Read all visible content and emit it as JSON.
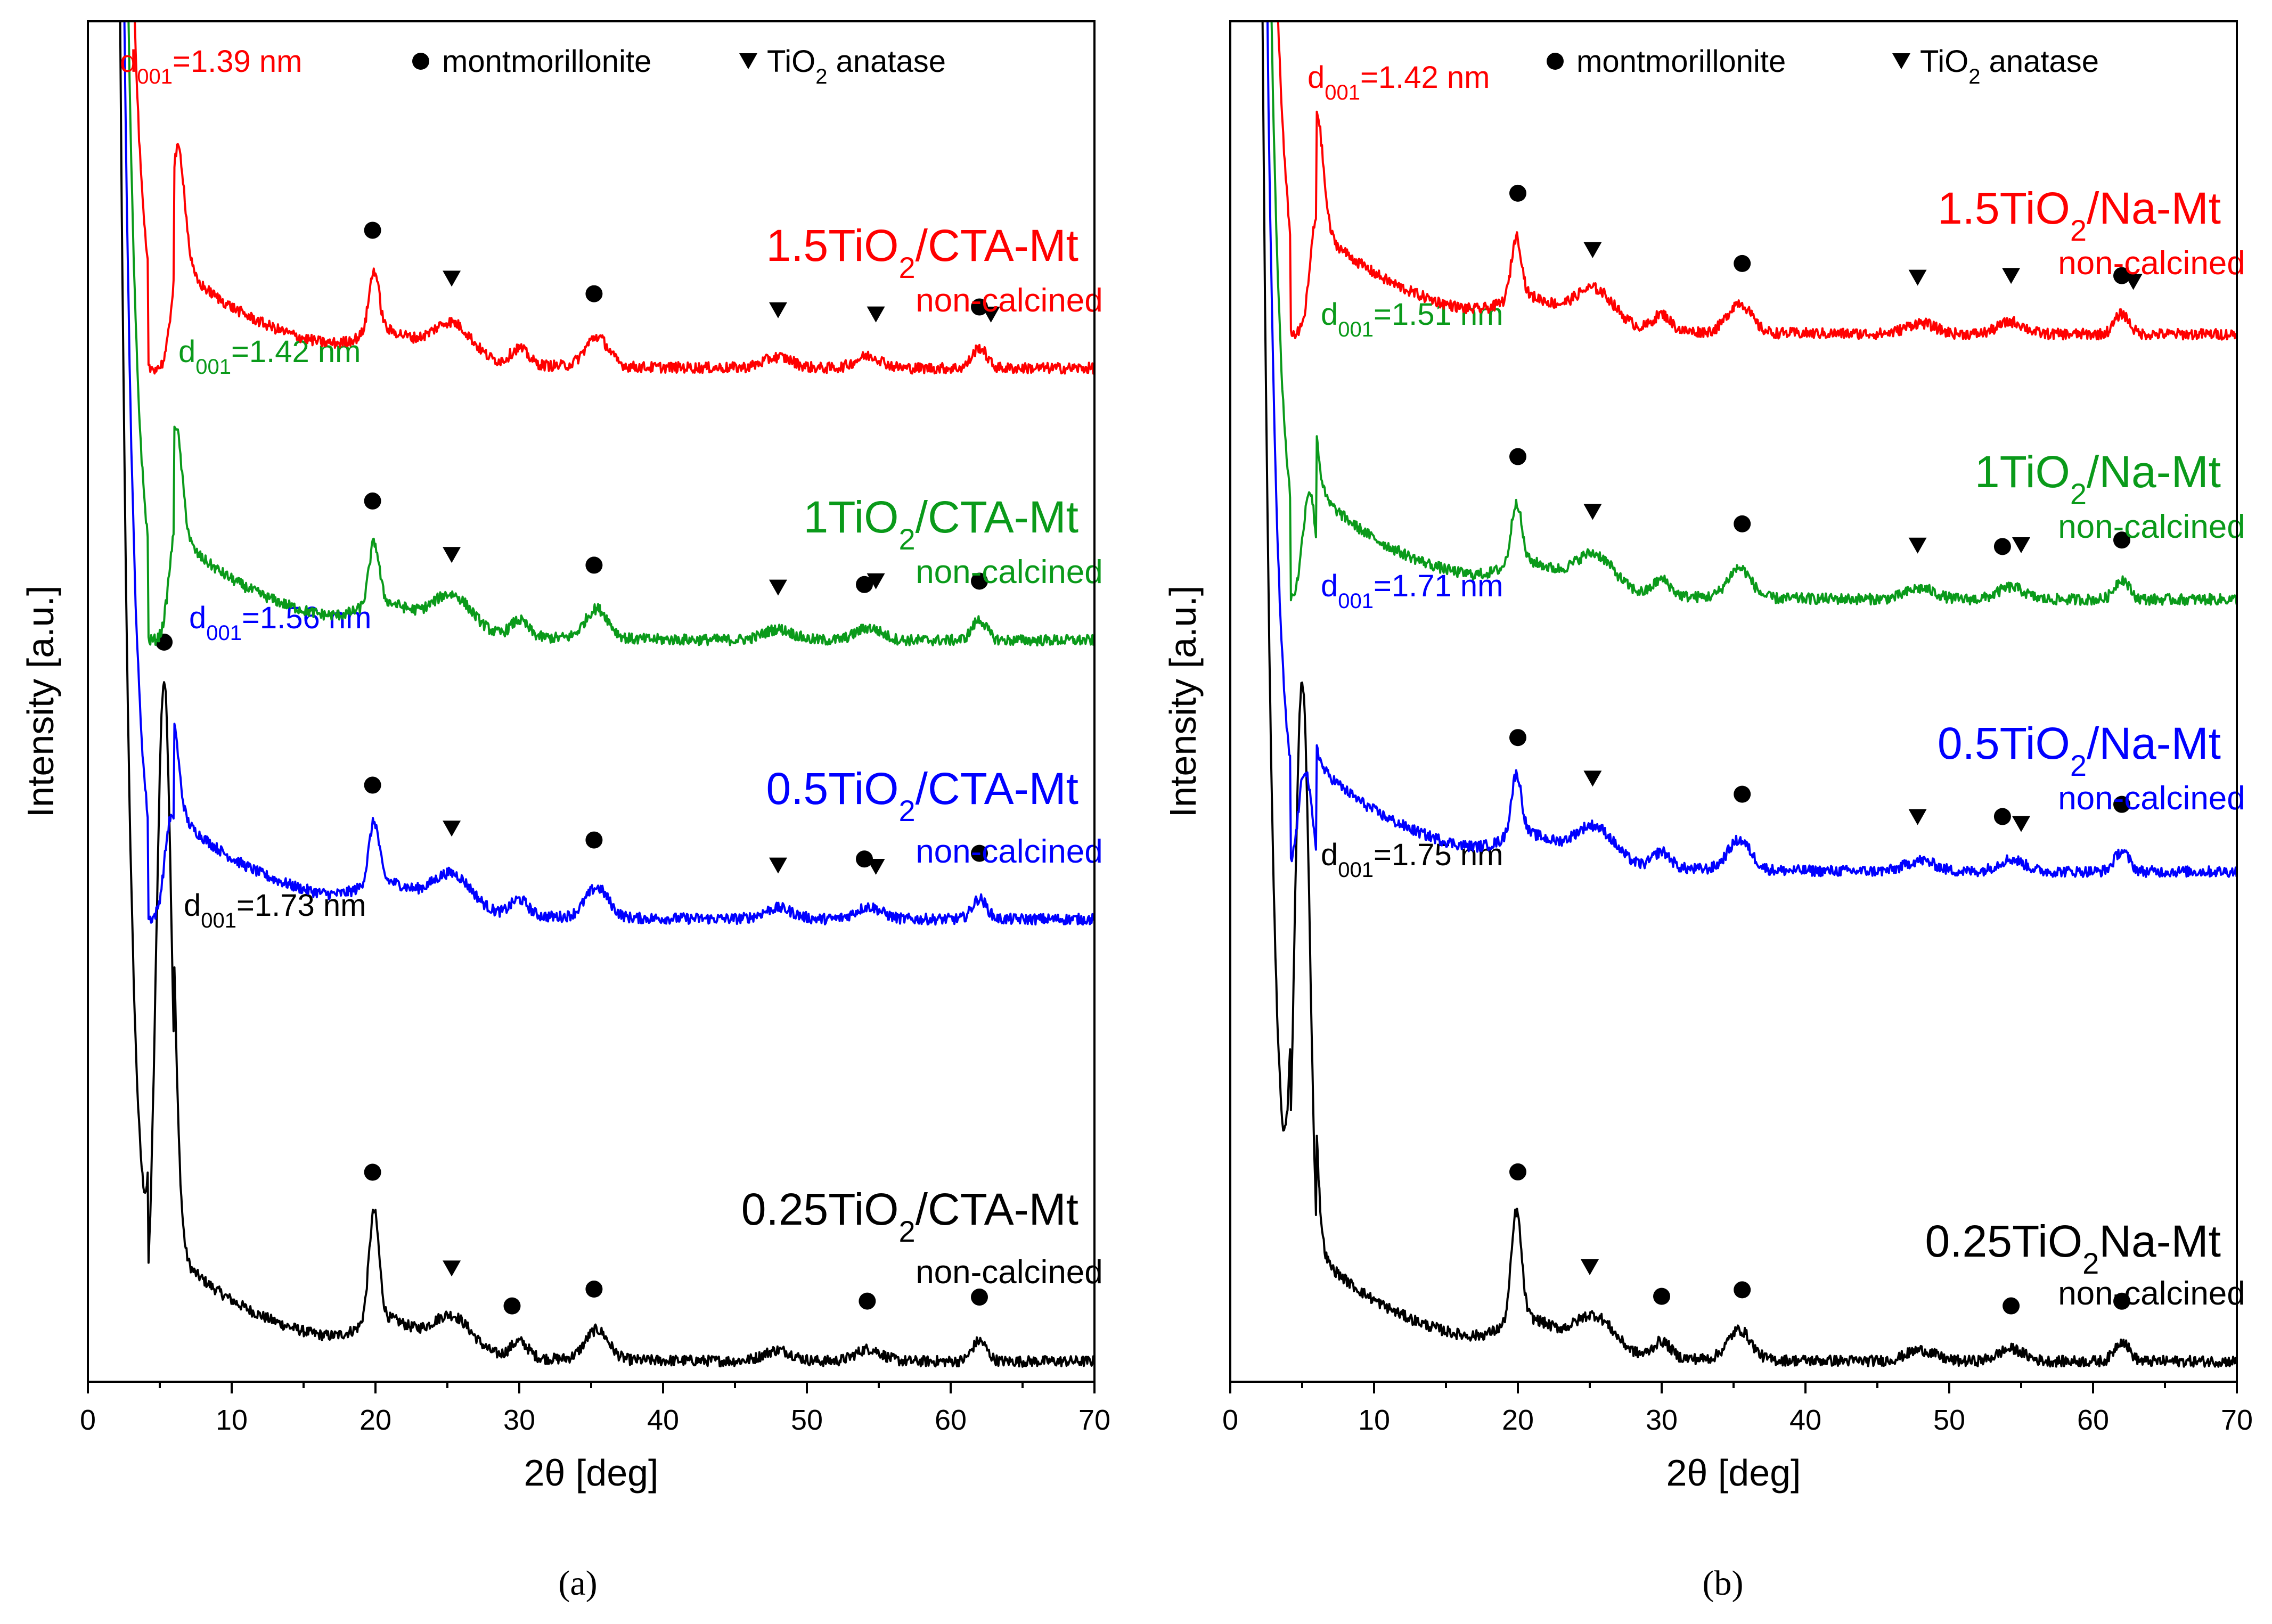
{
  "chart_data": [
    {
      "panel": "a",
      "caption": "(a)",
      "type": "line",
      "xlabel": "2θ [deg]",
      "ylabel": "Intensity [a.u.]",
      "xlim": [
        0,
        70
      ],
      "ylim": [
        0,
        100
      ],
      "xticks": [
        0,
        10,
        20,
        30,
        40,
        50,
        60,
        70
      ],
      "legend": {
        "montmorillonite": "montmorillonite",
        "anatase_prefix": "TiO",
        "anatase_sub": "2",
        "anatase_suffix": " anatase"
      },
      "series": [
        {
          "name_prefix": "0.25TiO",
          "name_sub": "2",
          "name_suffix": "/CTA-Mt",
          "note": "non-calcined",
          "color": "#000000",
          "baseline": 1.5,
          "d001": {
            "text": "=1.73 nm",
            "x_deg": 5.3
          },
          "montmorillonite_peaks": [
            5.3,
            19.8,
            29.5,
            35.2,
            54.2,
            62.0
          ],
          "anatase_peaks": [
            25.3
          ]
        },
        {
          "name_prefix": "0.5TiO",
          "name_sub": "2",
          "name_suffix": "/CTA-Mt",
          "note": "non-calcined",
          "color": "#0000ff",
          "baseline": 34.0,
          "d001": {
            "text": "=1.56 nm",
            "x_deg": 5.8
          },
          "montmorillonite_peaks": [
            19.8,
            35.2,
            54.0,
            62.0
          ],
          "anatase_peaks": [
            25.3,
            48.0,
            54.8
          ]
        },
        {
          "name_prefix": "1TiO",
          "name_sub": "2",
          "name_suffix": "/CTA-Mt",
          "note": "non-calcined",
          "color": "#0a9a1a",
          "baseline": 54.5,
          "d001": {
            "text": "=1.42 nm",
            "x_deg": 6.1
          },
          "montmorillonite_peaks": [
            19.8,
            35.2,
            54.0,
            62.0
          ],
          "anatase_peaks": [
            25.3,
            48.0,
            54.8
          ]
        },
        {
          "name_prefix": "1.5TiO",
          "name_sub": "2",
          "name_suffix": "/CTA-Mt",
          "note": "non-calcined",
          "color": "#ff0000",
          "baseline": 74.5,
          "d001": {
            "text": "=1.39 nm",
            "x_deg": 6.3
          },
          "montmorillonite_peaks": [
            19.8,
            35.2,
            62.0
          ],
          "anatase_peaks": [
            25.3,
            48.0,
            54.8,
            62.8
          ]
        }
      ]
    },
    {
      "panel": "b",
      "caption": "(b)",
      "type": "line",
      "xlabel": "2θ [deg]",
      "ylabel": "Intensity [a.u.]",
      "xlim": [
        0,
        70
      ],
      "ylim": [
        0,
        100
      ],
      "xticks": [
        0,
        10,
        20,
        30,
        40,
        50,
        60,
        70
      ],
      "legend": {
        "montmorillonite": "montmorillonite",
        "anatase_prefix": "TiO",
        "anatase_sub": "2",
        "anatase_suffix": " anatase"
      },
      "series": [
        {
          "name_prefix": "0.25TiO",
          "name_sub": "2",
          "name_suffix": "Na-Mt",
          "note": "non-calcined",
          "color": "#000000",
          "baseline": 1.5,
          "d001": {
            "text": "=1.75 nm",
            "x_deg": 5.0
          },
          "montmorillonite_peaks": [
            20.0,
            30.0,
            35.6,
            54.3,
            62.0
          ],
          "anatase_peaks": [
            25.0
          ]
        },
        {
          "name_prefix": "0.5TiO",
          "name_sub": "2",
          "name_suffix": "/Na-Mt",
          "note": "non-calcined",
          "color": "#0000ff",
          "baseline": 37.5,
          "d001": {
            "text": "=1.71 nm",
            "x_deg": 5.2
          },
          "montmorillonite_peaks": [
            20.0,
            35.6,
            53.7,
            62.0
          ],
          "anatase_peaks": [
            25.2,
            47.8,
            55.0
          ]
        },
        {
          "name_prefix": "1TiO",
          "name_sub": "2",
          "name_suffix": "/Na-Mt",
          "note": "non-calcined",
          "color": "#0a9a1a",
          "baseline": 57.5,
          "d001": {
            "text": "=1.51 nm",
            "x_deg": 5.5
          },
          "montmorillonite_peaks": [
            20.0,
            35.6,
            53.7,
            62.0
          ],
          "anatase_peaks": [
            25.2,
            47.8,
            55.0
          ]
        },
        {
          "name_prefix": "1.5TiO",
          "name_sub": "2",
          "name_suffix": "/Na-Mt",
          "note": "non-calcined",
          "color": "#ff0000",
          "baseline": 77.0,
          "d001": {
            "text": "=1.42 nm",
            "x_deg": 6.0
          },
          "montmorillonite_peaks": [
            20.0,
            35.6,
            62.0
          ],
          "anatase_peaks": [
            25.2,
            47.8,
            54.3,
            62.8
          ]
        }
      ]
    }
  ]
}
